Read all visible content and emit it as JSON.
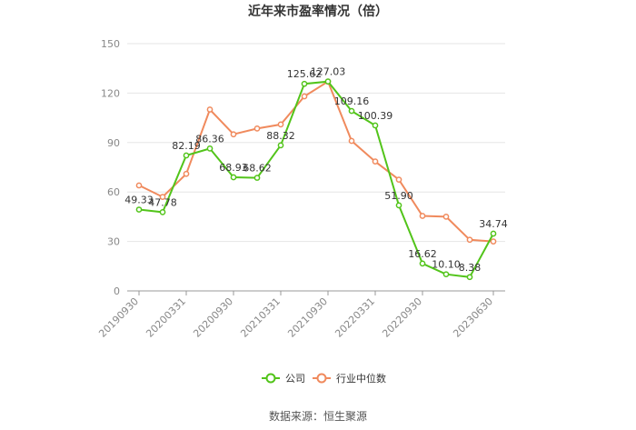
{
  "chart_data": {
    "type": "line",
    "title": "近年来市盈率情况（倍）",
    "source": "数据来源：恒生聚源",
    "ylim": [
      0,
      150
    ],
    "yticks": [
      0,
      30,
      60,
      90,
      120,
      150
    ],
    "xticks": [
      "20190930",
      "20200331",
      "20200930",
      "20210331",
      "20210930",
      "20220331",
      "20220930",
      "20230630"
    ],
    "x": [
      "20190930",
      "20191231",
      "20200331",
      "20200630",
      "20200930",
      "20201231",
      "20210331",
      "20210630",
      "20210930",
      "20211231",
      "20220331",
      "20220630",
      "20220930",
      "20221231",
      "20230331",
      "20230630"
    ],
    "grid": true,
    "legend_position": "bottom-center",
    "series": [
      {
        "name": "公司",
        "color": "#52c41a",
        "values": [
          49.33,
          47.78,
          82.19,
          86.36,
          68.93,
          68.62,
          88.32,
          125.62,
          127.03,
          109.16,
          100.39,
          51.9,
          16.62,
          10.1,
          8.38,
          34.74
        ],
        "labels": [
          "49.33",
          "47.78",
          "82.19",
          "86.36",
          "68.93",
          "68.62",
          "88.32",
          "125.62",
          "127.03",
          "109.16",
          "100.39",
          "51.90",
          "16.62",
          "10.10",
          "8.38",
          "34.74"
        ]
      },
      {
        "name": "行业中位数",
        "color": "#f08a5d",
        "values": [
          64,
          57,
          71,
          110,
          95,
          98.5,
          101,
          118,
          127,
          91,
          78.5,
          67.5,
          45.5,
          45,
          31,
          30
        ],
        "labels": []
      }
    ]
  }
}
